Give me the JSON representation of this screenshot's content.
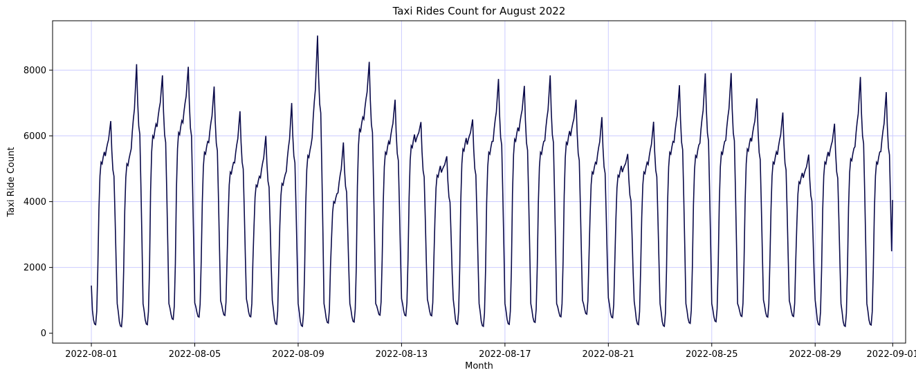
{
  "chart_data": {
    "type": "line",
    "title": "Taxi Rides Count for August 2022",
    "xlabel": "Month",
    "ylabel": "Taxi Ride Count",
    "x_ticks": [
      "2022-08-01",
      "2022-08-05",
      "2022-08-09",
      "2022-08-13",
      "2022-08-17",
      "2022-08-21",
      "2022-08-25",
      "2022-08-29",
      "2022-09-01"
    ],
    "y_ticks": [
      0,
      2000,
      4000,
      6000,
      8000
    ],
    "xlim": [
      "2021-07-30 12:00",
      "2022-09-01 12:00"
    ],
    "ylim": [
      -300,
      9500
    ],
    "x_start": "2022-08-01 00:00",
    "x_step": "1 hour",
    "grid": true,
    "grid_color": "#ccccff",
    "line_color": "#0a0a4a",
    "series": [
      {
        "daily_profile": {
          "days": [
            "2022-08-01",
            "2022-08-02",
            "2022-08-03",
            "2022-08-04",
            "2022-08-05",
            "2022-08-06",
            "2022-08-07",
            "2022-08-08",
            "2022-08-09",
            "2022-08-10",
            "2022-08-11",
            "2022-08-12",
            "2022-08-13",
            "2022-08-14",
            "2022-08-15",
            "2022-08-16",
            "2022-08-17",
            "2022-08-18",
            "2022-08-19",
            "2022-08-20",
            "2022-08-21",
            "2022-08-22",
            "2022-08-23",
            "2022-08-24",
            "2022-08-25",
            "2022-08-26",
            "2022-08-27",
            "2022-08-28",
            "2022-08-29",
            "2022-08-30",
            "2022-08-31"
          ],
          "morning_peak": [
            5200,
            5150,
            6000,
            6100,
            5500,
            4900,
            4500,
            4550,
            5400,
            4000,
            6200,
            5500,
            5700,
            4800,
            5600,
            5500,
            5900,
            5500,
            5800,
            4900,
            4800,
            4900,
            5500,
            5400,
            5500,
            5600,
            5200,
            4600,
            5200,
            5300,
            5200
          ],
          "evening_peak": [
            6450,
            8180,
            7840,
            8100,
            7500,
            6750,
            6000,
            7000,
            9050,
            5800,
            8250,
            7100,
            6420,
            5380,
            6500,
            7730,
            7520,
            7840,
            7100,
            6570,
            5450,
            6430,
            7540,
            7900,
            7910,
            7140,
            6710,
            5430,
            6370,
            7790,
            7330
          ],
          "night_low": [
            260,
            200,
            260,
            420,
            490,
            540,
            500,
            270,
            210,
            310,
            340,
            550,
            530,
            530,
            270,
            210,
            270,
            330,
            500,
            580,
            470,
            260,
            210,
            300,
            350,
            510,
            490,
            510,
            250,
            210,
            250
          ]
        }
      }
    ]
  }
}
